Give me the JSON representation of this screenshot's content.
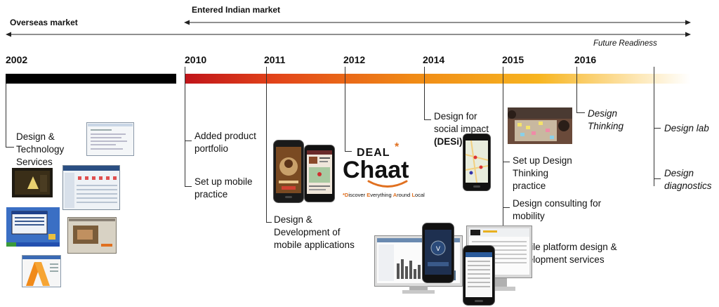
{
  "headers": {
    "overseas": "Overseas market",
    "indian": "Entered Indian market",
    "future": "Future Readiness"
  },
  "years": [
    "2002",
    "2010",
    "2011",
    "2012",
    "2014",
    "2015",
    "2016"
  ],
  "events": {
    "y2002": [
      "Design &",
      "Technology",
      "Services"
    ],
    "y2010_a": [
      "Added product",
      "portfolio"
    ],
    "y2010_b": [
      "Set up mobile",
      "practice"
    ],
    "y2011": [
      "Design &",
      "Development of",
      "mobile applications"
    ],
    "y2014_a": [
      "Design for",
      "social impact"
    ],
    "y2014_b": "(DESi)",
    "y2015_a": [
      "Set up Design",
      "Thinking",
      "practice"
    ],
    "y2015_b": [
      "Design consulting for",
      "mobility"
    ],
    "y2015_c": [
      "Mobile platform design &",
      "development services"
    ],
    "y2016": [
      "Design",
      "Thinking"
    ],
    "future_a": "Design lab",
    "future_b": [
      "Design",
      "diagnostics"
    ]
  },
  "logo": {
    "deal": "DEAL",
    "chaat": "Chaat",
    "tagline_parts": [
      "*",
      "D",
      "iscover ",
      "E",
      "verything ",
      "A",
      "round ",
      "L",
      "ocal"
    ]
  },
  "colors": {
    "bar_black": "#000000",
    "gradient_start": "#c0141a",
    "gradient_mid": "#f39c12",
    "gradient_end": "#ffffff",
    "accent_orange": "#e07020"
  }
}
